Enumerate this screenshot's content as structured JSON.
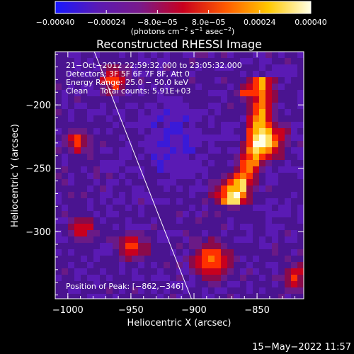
{
  "chart_data": {
    "type": "heatmap",
    "title": "Reconstructed RHESSI Image",
    "xlabel": "Heliocentric X (arcsec)",
    "ylabel": "Heliocentric Y (arcsec)",
    "xlim": [
      -1010,
      -813
    ],
    "ylim": [
      -353,
      -158
    ],
    "x_ticks": [
      -1000,
      -950,
      -900,
      -850
    ],
    "x_tick_labels": [
      "−1000",
      "−950",
      "−900",
      "−850"
    ],
    "y_ticks": [
      -200,
      -250,
      -300
    ],
    "y_tick_labels": [
      "−200",
      "−250",
      "−300"
    ],
    "colorbar": {
      "min": -0.0004,
      "max": 0.0004,
      "ticks": [
        -0.0004,
        -0.00024,
        -8e-05,
        8e-05,
        0.00024,
        0.0004
      ],
      "tick_labels": [
        "−0.00040",
        "−0.00024",
        "−8.0e−05",
        "8.0e−05",
        "0.00024",
        "0.00040"
      ],
      "units_main": "(photons cm",
      "units_sup1": "−2",
      "units_mid": " s",
      "units_sup2": "−1",
      "units_mid2": " asec",
      "units_sup3": "−2",
      "units_end": ")",
      "colors": [
        "#1818ff",
        "#5a1ab4",
        "#7a1a8a",
        "#c8001e",
        "#ff5a00",
        "#ffc800",
        "#ffffe6"
      ]
    },
    "info_lines": [
      "21−Oct−2012 22:59:32.000 to 23:05:32.000",
      "Detectors: 3F 5F 6F 7F 8F, Att 0",
      "Energy Range: 25.0 − 50.0 keV",
      "Clean     Total counts: 5.91E+03"
    ],
    "peak_label": "Position of Peak: [−862,−346]",
    "limb_line": [
      [
        -979,
        -158
      ],
      [
        -902,
        -353
      ]
    ],
    "grid": false,
    "legend": "none"
  },
  "footer": {
    "timestamp": "15−May−2022 11:57"
  }
}
